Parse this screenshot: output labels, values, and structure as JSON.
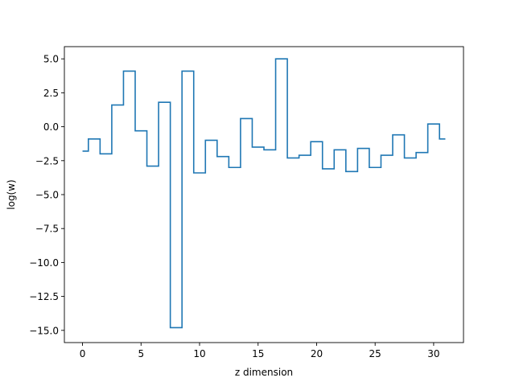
{
  "chart_data": {
    "type": "line",
    "style": "step-mid",
    "title": "",
    "xlabel": "z dimension",
    "ylabel": "log(w)",
    "xlim": [
      -1.55,
      32.55
    ],
    "ylim": [
      -15.9,
      5.9
    ],
    "xticks": [
      0,
      5,
      10,
      15,
      20,
      25,
      30
    ],
    "xtick_labels": [
      "0",
      "5",
      "10",
      "15",
      "20",
      "25",
      "30"
    ],
    "yticks": [
      5.0,
      2.5,
      0.0,
      -2.5,
      -5.0,
      -7.5,
      -10.0,
      -12.5,
      -15.0
    ],
    "ytick_labels": [
      "5.0",
      "2.5",
      "0.0",
      "−2.5",
      "−5.0",
      "−7.5",
      "−10.0",
      "−12.5",
      "−15.0"
    ],
    "grid": false,
    "legend": "none",
    "series": [
      {
        "color": "#1f77b4",
        "x": [
          0,
          1,
          2,
          3,
          4,
          5,
          6,
          7,
          8,
          9,
          10,
          11,
          12,
          13,
          14,
          15,
          16,
          17,
          18,
          19,
          20,
          21,
          22,
          23,
          24,
          25,
          26,
          27,
          28,
          29,
          30,
          31
        ],
        "values": [
          -1.8,
          -0.9,
          -2.0,
          1.6,
          4.1,
          -0.3,
          -2.9,
          1.8,
          -14.8,
          4.1,
          -3.4,
          -1.0,
          -2.2,
          -3.0,
          0.6,
          -1.5,
          -1.7,
          5.0,
          -2.3,
          -2.1,
          -1.1,
          -3.1,
          -1.7,
          -3.3,
          -1.6,
          -3.0,
          -2.1,
          -0.6,
          -2.3,
          -1.9,
          0.2,
          -0.9
        ]
      }
    ]
  }
}
